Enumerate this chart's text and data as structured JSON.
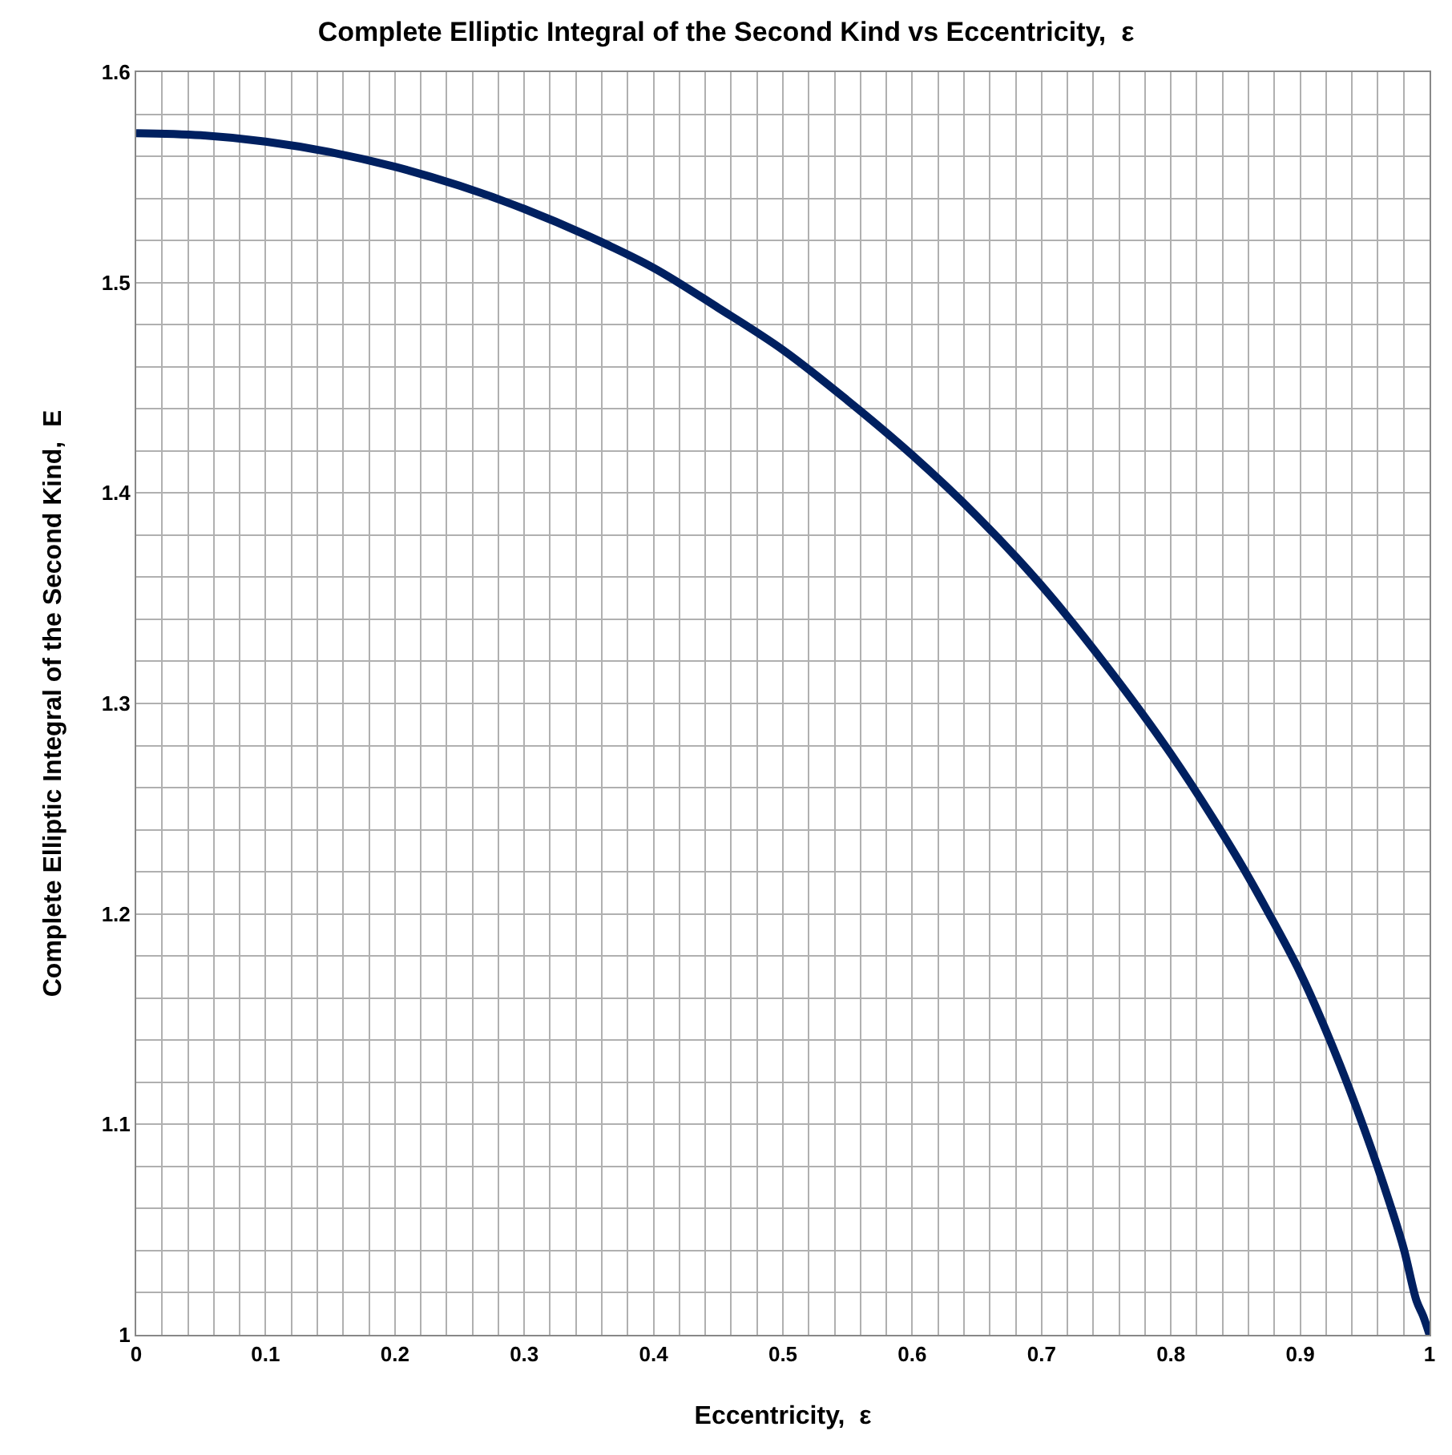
{
  "chart_data": {
    "type": "line",
    "title": "Complete Elliptic Integral of the Second Kind vs Eccentricity,  ε",
    "xlabel": "Eccentricity,  ε",
    "ylabel": "Complete Elliptic Integral of the Second Kind,  E",
    "x": [
      0,
      0.05,
      0.1,
      0.15,
      0.2,
      0.25,
      0.3,
      0.35,
      0.4,
      0.45,
      0.5,
      0.55,
      0.6,
      0.65,
      0.7,
      0.75,
      0.8,
      0.85,
      0.875,
      0.9,
      0.925,
      0.95,
      0.97,
      0.98,
      0.99,
      0.995,
      1
    ],
    "series": [
      {
        "color": "#002060",
        "values": [
          1.571,
          1.57,
          1.567,
          1.562,
          1.555,
          1.546,
          1.535,
          1.522,
          1.507,
          1.488,
          1.468,
          1.444,
          1.418,
          1.389,
          1.356,
          1.318,
          1.276,
          1.228,
          1.201,
          1.172,
          1.137,
          1.097,
          1.061,
          1.041,
          1.016,
          1.009,
          1.0
        ]
      }
    ],
    "xlim": [
      0,
      1
    ],
    "ylim": [
      1,
      1.6
    ],
    "xticks": [
      0,
      {
        "value": 0.02,
        "label": null
      },
      {
        "value": 0.04,
        "label": null
      },
      {
        "value": 0.06,
        "label": null
      },
      {
        "value": 0.08,
        "label": null
      },
      0.1,
      {
        "value": 0.12,
        "label": null
      },
      {
        "value": 0.14,
        "label": null
      },
      {
        "value": 0.16,
        "label": null
      },
      {
        "value": 0.18,
        "label": null
      },
      0.2,
      {
        "value": 0.22,
        "label": null
      },
      {
        "value": 0.24,
        "label": null
      },
      {
        "value": 0.26,
        "label": null
      },
      {
        "value": 0.28,
        "label": null
      },
      0.3,
      {
        "value": 0.32,
        "label": null
      },
      {
        "value": 0.34,
        "label": null
      },
      {
        "value": 0.36,
        "label": null
      },
      {
        "value": 0.38,
        "label": null
      },
      0.4,
      {
        "value": 0.42,
        "label": null
      },
      {
        "value": 0.44,
        "label": null
      },
      {
        "value": 0.46,
        "label": null
      },
      {
        "value": 0.48,
        "label": null
      },
      0.5,
      {
        "value": 0.52,
        "label": null
      },
      {
        "value": 0.54,
        "label": null
      },
      {
        "value": 0.56,
        "label": null
      },
      {
        "value": 0.58,
        "label": null
      },
      0.6,
      {
        "value": 0.62,
        "label": null
      },
      {
        "value": 0.64,
        "label": null
      },
      {
        "value": 0.66,
        "label": null
      },
      {
        "value": 0.68,
        "label": null
      },
      0.7,
      {
        "value": 0.72,
        "label": null
      },
      {
        "value": 0.74,
        "label": null
      },
      {
        "value": 0.76,
        "label": null
      },
      {
        "value": 0.78,
        "label": null
      },
      0.8,
      {
        "value": 0.82,
        "label": null
      },
      {
        "value": 0.84,
        "label": null
      },
      {
        "value": 0.86,
        "label": null
      },
      {
        "value": 0.88,
        "label": null
      },
      0.9,
      {
        "value": 0.92,
        "label": null
      },
      {
        "value": 0.94,
        "label": null
      },
      {
        "value": 0.96,
        "label": null
      },
      {
        "value": 0.98,
        "label": null
      },
      1
    ],
    "yticks": [
      1,
      {
        "value": 1.02,
        "label": null
      },
      {
        "value": 1.04,
        "label": null
      },
      {
        "value": 1.06,
        "label": null
      },
      {
        "value": 1.08,
        "label": null
      },
      1.1,
      {
        "value": 1.12,
        "label": null
      },
      {
        "value": 1.14,
        "label": null
      },
      {
        "value": 1.16,
        "label": null
      },
      {
        "value": 1.18,
        "label": null
      },
      1.2,
      {
        "value": 1.22,
        "label": null
      },
      {
        "value": 1.24,
        "label": null
      },
      {
        "value": 1.26,
        "label": null
      },
      {
        "value": 1.28,
        "label": null
      },
      1.3,
      {
        "value": 1.32,
        "label": null
      },
      {
        "value": 1.34,
        "label": null
      },
      {
        "value": 1.36,
        "label": null
      },
      {
        "value": 1.38,
        "label": null
      },
      1.4,
      {
        "value": 1.42,
        "label": null
      },
      {
        "value": 1.44,
        "label": null
      },
      {
        "value": 1.46,
        "label": null
      },
      {
        "value": 1.48,
        "label": null
      },
      1.5,
      {
        "value": 1.52,
        "label": null
      },
      {
        "value": 1.54,
        "label": null
      },
      {
        "value": 1.56,
        "label": null
      },
      {
        "value": 1.58,
        "label": null
      },
      1.6
    ],
    "grid": true,
    "marker": "none",
    "line_style": "solid"
  }
}
